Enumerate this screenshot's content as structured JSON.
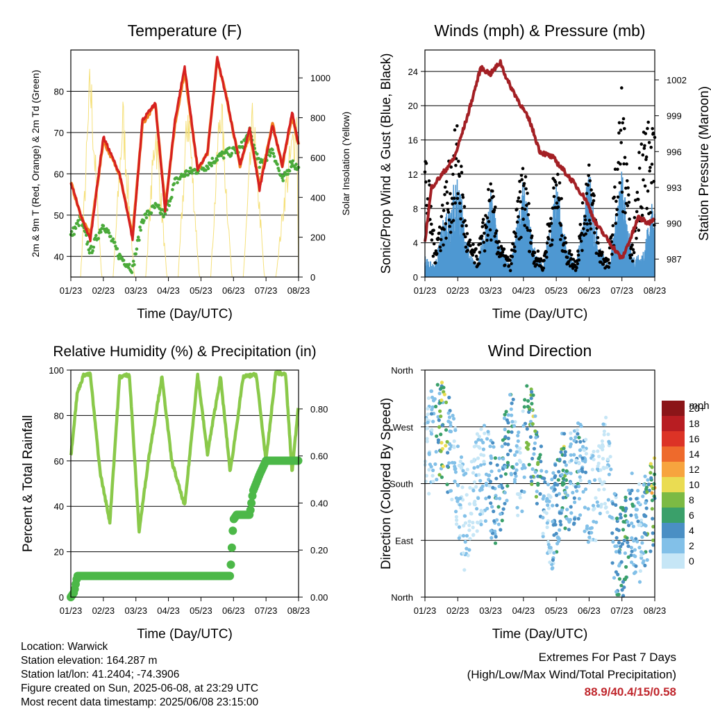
{
  "temp_panel": {
    "title": "Temperature (F)",
    "ylabel_left": "2m & 9m T (Red, Orange) & 2m Td (Green)",
    "ylabel_right": "Solar Insolation (Yellow)",
    "xlabel": "Time (Day/UTC)"
  },
  "wind_panel": {
    "title": "Winds (mph) & Pressure (mb)",
    "ylabel_left": "Sonic/Prop Wind & Gust (Blue, Black)",
    "ylabel_right": "Station Pressure (Maroon)",
    "xlabel": "Time (Day/UTC)"
  },
  "rh_panel": {
    "title": "Relative Humidity (%) & Precipitation (in)",
    "ylabel_left": "Percent & Total Rainfall",
    "xlabel": "Time (Day/UTC)"
  },
  "dir_panel": {
    "title": "Wind Direction",
    "ylabel_left": "Direction (Colored By Speed)",
    "xlabel": "Time (Day/UTC)",
    "colorbar_title": "mph"
  },
  "footer": {
    "location": "Location: Warwick",
    "elevation": "Station elevation: 164.287 m",
    "latlon": "Station lat/lon: 41.2404; -74.3906",
    "created": "Figure created on Sun, 2025-06-08, at 23:29 UTC",
    "recent": "Most recent data timestamp: 2025/06/08 23:15:00"
  },
  "extremes": {
    "line1": "Extremes For Past 7 Days",
    "line2": "(High/Low/Max Wind/Total Precipitation)",
    "values": "88.9/40.4/15/0.58"
  },
  "colors": {
    "temp2m": "#d62020",
    "temp9m": "#f07f1f",
    "dewpoint": "#4aaa3a",
    "solar": "#f5e07a",
    "wind": "#4f98d2",
    "gust": "#000000",
    "pressure": "#a31f24",
    "rh": "#8ac94a",
    "precip": "#4cb848"
  },
  "chart_data": [
    {
      "type": "line",
      "title": "Temperature (F)",
      "xlabel": "Time (Day/UTC)",
      "ylabel": "2m & 9m T (Red, Orange) & 2m Td (Green)",
      "ylabel_right": "Solar Insolation (Yellow)",
      "x": [
        "01/23",
        "02/23",
        "03/23",
        "04/23",
        "05/23",
        "06/23",
        "07/23",
        "08/23"
      ],
      "ylim": [
        35,
        90
      ],
      "yticks": [
        40,
        50,
        60,
        70,
        80
      ],
      "ylim_right": [
        0,
        1140
      ],
      "yticks_right": [
        0,
        200,
        400,
        600,
        800,
        1000
      ],
      "grid": true,
      "series": [
        {
          "name": "2m T",
          "color": "#d62020",
          "x": [
            0,
            0.3,
            0.6,
            1.0,
            1.5,
            1.9,
            2.2,
            2.6,
            2.9,
            3.2,
            3.5,
            3.9,
            4.2,
            4.5,
            4.8,
            5.2,
            5.5,
            5.8,
            6.2,
            6.5,
            6.8,
            7.0
          ],
          "values": [
            58,
            50,
            44,
            69,
            60,
            44,
            73,
            77,
            51,
            73,
            86,
            61,
            65,
            88,
            78,
            62,
            71,
            56,
            72,
            62,
            75,
            67
          ]
        },
        {
          "name": "9m T",
          "color": "#f07f1f",
          "x": [
            0,
            0.3,
            0.6,
            1.0,
            1.5,
            1.9,
            2.2,
            2.6,
            2.9,
            3.2,
            3.5,
            3.9,
            4.2,
            4.5,
            4.8,
            5.2,
            5.5,
            5.8,
            6.2,
            6.5,
            6.8,
            7.0
          ],
          "values": [
            58,
            50,
            45,
            68,
            60,
            45,
            72,
            77,
            52,
            72,
            85,
            61,
            65,
            88,
            78,
            62,
            70,
            57,
            72,
            62,
            74,
            67
          ]
        },
        {
          "name": "2m Td",
          "color": "#4aaa3a",
          "x": [
            0,
            0.3,
            0.6,
            1.0,
            1.5,
            1.9,
            2.2,
            2.6,
            2.9,
            3.2,
            3.5,
            3.9,
            4.2,
            4.5,
            4.8,
            5.2,
            5.5,
            5.8,
            6.2,
            6.5,
            6.8,
            7.0
          ],
          "values": [
            45,
            49,
            41,
            48,
            40,
            37,
            49,
            52,
            50,
            58,
            60,
            61,
            62,
            64,
            65,
            66,
            70,
            62,
            66,
            58,
            63,
            61
          ]
        },
        {
          "name": "Solar Insolation",
          "color": "#f5e07a",
          "axis": "right",
          "x": [
            0,
            0.3,
            0.6,
            0.95,
            1.3,
            1.6,
            1.95,
            2.3,
            2.6,
            2.95,
            3.3,
            3.6,
            3.95,
            4.3,
            4.6,
            4.95,
            5.3,
            5.6,
            5.95,
            6.3,
            6.6,
            6.95,
            7.0
          ],
          "values": [
            0,
            0,
            1100,
            0,
            0,
            900,
            0,
            0,
            850,
            0,
            0,
            950,
            0,
            0,
            1000,
            0,
            0,
            900,
            0,
            0,
            500,
            900,
            0
          ]
        }
      ]
    },
    {
      "type": "line",
      "title": "Winds (mph) & Pressure (mb)",
      "xlabel": "Time (Day/UTC)",
      "ylabel": "Sonic/Prop Wind & Gust (Blue, Black)",
      "ylabel_right": "Station Pressure (Maroon)",
      "x": [
        "01/23",
        "02/23",
        "03/23",
        "04/23",
        "05/23",
        "06/23",
        "07/23",
        "08/23"
      ],
      "ylim": [
        0,
        26.5
      ],
      "yticks": [
        0,
        4,
        8,
        12,
        16,
        20,
        24
      ],
      "ylim_right": [
        985.5,
        1004.5
      ],
      "yticks_right": [
        987,
        990,
        993,
        996,
        999,
        1002
      ],
      "grid": true,
      "series": [
        {
          "name": "Wind",
          "color": "#4f98d2",
          "x": [
            0,
            0.3,
            0.6,
            1.0,
            1.3,
            1.6,
            2.0,
            2.3,
            2.6,
            3.0,
            3.3,
            3.6,
            4.0,
            4.3,
            4.6,
            5.0,
            5.3,
            5.6,
            6.0,
            6.3,
            6.6,
            7.0
          ],
          "values": [
            2,
            1,
            6,
            10,
            3,
            1,
            8,
            3,
            1,
            9,
            3,
            1,
            9,
            3,
            1,
            10,
            3,
            1,
            10,
            2,
            2,
            8
          ]
        },
        {
          "name": "Gust",
          "color": "#000000",
          "x": [
            0,
            0.3,
            0.6,
            1.0,
            1.3,
            1.6,
            2.0,
            2.3,
            2.6,
            3.0,
            3.3,
            3.6,
            4.0,
            4.3,
            4.6,
            5.0,
            5.3,
            5.6,
            6.0,
            6.3,
            6.6,
            7.0
          ],
          "values": [
            17,
            4,
            11,
            19,
            5,
            3,
            12,
            4,
            2,
            15,
            4,
            2,
            15,
            4,
            2,
            16,
            4,
            2,
            24,
            3,
            20,
            17
          ]
        },
        {
          "name": "Pressure",
          "color": "#a31f24",
          "axis": "right",
          "x": [
            0,
            0.2,
            0.5,
            0.9,
            1.3,
            1.7,
            2.0,
            2.3,
            2.5,
            2.8,
            3.2,
            3.5,
            3.9,
            4.2,
            4.5,
            4.9,
            5.2,
            5.6,
            6.0,
            6.3,
            6.5,
            6.8,
            7.0
          ],
          "values": [
            988.5,
            993,
            994,
            995.5,
            999,
            1003,
            1002.5,
            1003.5,
            1002,
            1000.5,
            998.5,
            996,
            995.5,
            994.5,
            993.5,
            992,
            990,
            988.5,
            987,
            989,
            990.5,
            990,
            990.5
          ]
        }
      ]
    },
    {
      "type": "line",
      "title": "Relative Humidity (%) & Precipitation (in)",
      "xlabel": "Time (Day/UTC)",
      "ylabel": "Percent & Total Rainfall",
      "x": [
        "01/23",
        "02/23",
        "03/23",
        "04/23",
        "05/23",
        "06/23",
        "07/23",
        "08/23"
      ],
      "ylim": [
        0,
        100
      ],
      "yticks": [
        0,
        20,
        40,
        60,
        80,
        100
      ],
      "ylim_right": [
        0,
        0.965
      ],
      "yticks_right": [
        0.0,
        0.2,
        0.4,
        0.6,
        0.8
      ],
      "grid": true,
      "series": [
        {
          "name": "RH",
          "color": "#8ac94a",
          "x": [
            0,
            0.2,
            0.4,
            0.6,
            0.9,
            1.2,
            1.5,
            1.8,
            2.1,
            2.4,
            2.8,
            3.1,
            3.5,
            3.9,
            4.2,
            4.6,
            4.9,
            5.3,
            5.7,
            6.0,
            6.3,
            6.6,
            6.8,
            7.0
          ],
          "values": [
            62,
            90,
            98,
            98,
            55,
            33,
            97,
            98,
            29,
            62,
            97,
            60,
            40,
            98,
            63,
            97,
            55,
            97,
            98,
            60,
            99,
            98,
            55,
            85
          ]
        },
        {
          "name": "Total Precipitation",
          "color": "#4cb848",
          "axis": "right",
          "x": [
            0,
            0.1,
            0.2,
            1.0,
            2.0,
            3.0,
            4.0,
            4.9,
            5.0,
            5.1,
            5.5,
            5.6,
            5.8,
            6.0,
            6.5,
            7.0
          ],
          "values": [
            0.0,
            0.02,
            0.09,
            0.09,
            0.09,
            0.09,
            0.09,
            0.09,
            0.33,
            0.35,
            0.35,
            0.45,
            0.52,
            0.58,
            0.58,
            0.58
          ]
        }
      ]
    },
    {
      "type": "scatter",
      "title": "Wind Direction",
      "xlabel": "Time (Day/UTC)",
      "ylabel": "Direction (Colored By Speed)",
      "x": [
        "01/23",
        "02/23",
        "03/23",
        "04/23",
        "05/23",
        "06/23",
        "07/23",
        "08/23"
      ],
      "yticks": [
        "North",
        "East",
        "South",
        "West",
        "North"
      ],
      "ylim": [
        0,
        360
      ],
      "grid": true,
      "colorbar": {
        "title": "mph",
        "levels": [
          "0",
          "2",
          "4",
          "6",
          "8",
          "10",
          "12",
          "14",
          "16",
          "18",
          "20+"
        ],
        "colors": [
          "#c6e6f6",
          "#82c0e8",
          "#4a8fc4",
          "#3aa06a",
          "#7cba44",
          "#eadc52",
          "#f7a43e",
          "#ee6a2c",
          "#dc3326",
          "#b81d22",
          "#8b1518"
        ]
      },
      "series": [
        {
          "name": "Wind direction",
          "x": [
            0.1,
            0.5,
            0.6,
            0.8,
            1.2,
            1.5,
            1.8,
            2.2,
            2.6,
            2.9,
            3.1,
            3.4,
            3.8,
            4.2,
            4.4,
            4.7,
            5.1,
            5.5,
            5.8,
            6.0,
            6.3,
            6.6,
            6.9
          ],
          "values": [
            240,
            270,
            260,
            230,
            120,
            170,
            200,
            150,
            260,
            190,
            270,
            230,
            100,
            190,
            185,
            200,
            150,
            220,
            90,
            60,
            120,
            100,
            150
          ],
          "speed": [
            2,
            10,
            12,
            3,
            3,
            2,
            4,
            6,
            8,
            2,
            10,
            9,
            2,
            11,
            4,
            6,
            3,
            2,
            6,
            8,
            6,
            3,
            12
          ]
        }
      ]
    }
  ]
}
